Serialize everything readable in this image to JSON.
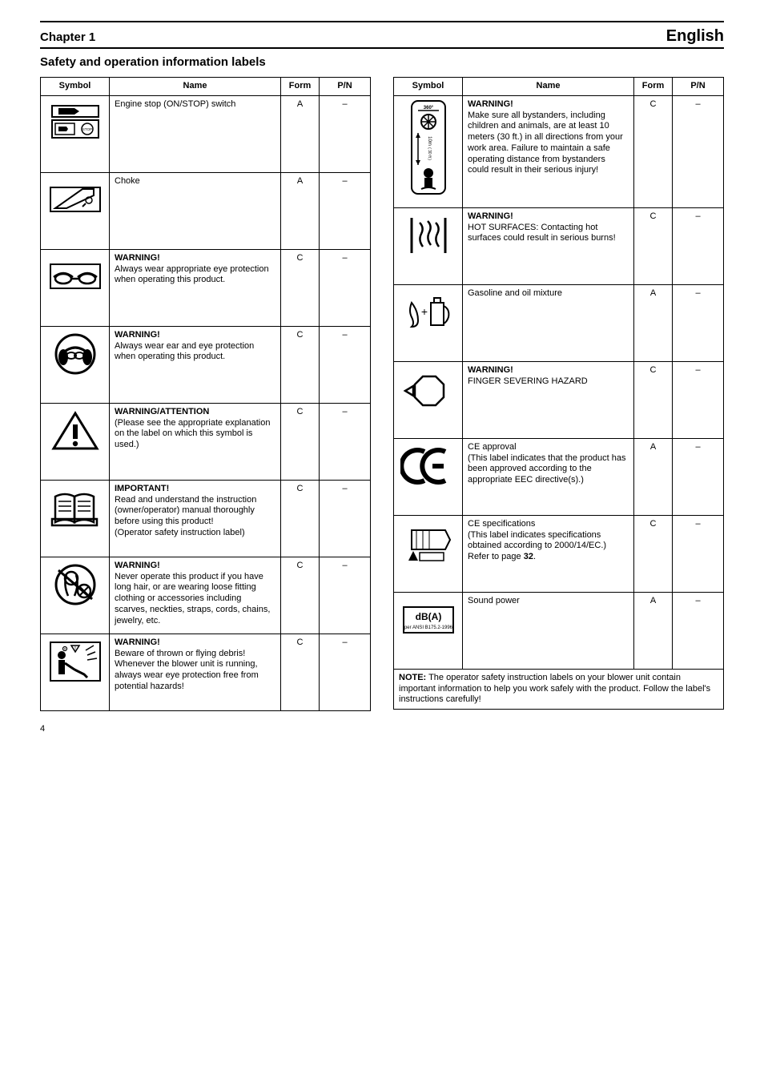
{
  "page": {
    "chapter": "Chapter 1",
    "chapter_right": "English",
    "section_title": "Safety and operation information labels",
    "page_number": "4"
  },
  "table": {
    "headers": {
      "symbol": "Symbol",
      "name": "Name",
      "form": "Form",
      "partno": "P/N"
    },
    "left": [
      {
        "icon": "stop-switch-icon",
        "name": "Engine stop (ON/STOP) switch",
        "form": "A",
        "partno": "–"
      },
      {
        "icon": "choke-icon",
        "name": "Choke",
        "form": "A",
        "partno": "–"
      },
      {
        "icon": "eyewear-icon",
        "name_html": "<b>WARNING!</b><br>Always wear appropriate eye protection when operating this product.",
        "form": "C",
        "partno": "–"
      },
      {
        "icon": "ear-eye-icon",
        "name_html": "<b>WARNING!</b><br>Always wear ear and eye protection when operating this product.",
        "form": "C",
        "partno": "–"
      },
      {
        "icon": "warning-triangle-icon",
        "name_html": "<b>WARNING/ATTENTION</b><br>(Please see the appropriate explanation on the label on which this symbol is used.)",
        "form": "C",
        "partno": "–"
      },
      {
        "icon": "read-manual-icon",
        "name_html": "<b>IMPORTANT!</b><br>Read and understand the instruction (owner/operator) manual thoroughly before using this product!<br>(Operator safety instruction label)",
        "form": "C",
        "partno": "–"
      },
      {
        "icon": "hair-hazard-icon",
        "name_html": "<b>WARNING!</b><br>Never operate this product if you have long hair, or are wearing loose fitting clothing or accessories including scarves, neckties, straps, cords, chains, jewelry, etc.",
        "form": "C",
        "partno": "–"
      },
      {
        "icon": "flying-debris-icon",
        "name_html": "<b>WARNING!</b><br>Beware of thrown or flying debris! Whenever the blower unit is running, always wear eye protection free from potential hazards!",
        "form": "C",
        "partno": "–"
      }
    ],
    "right": [
      {
        "icon": "bystander-distance-icon",
        "name_html": "<b>WARNING!</b><br>Make sure all bystanders, including children and animals, are at least 10 meters (30 ft.) in all directions from your work area. Failure to maintain a safe operating distance from bystanders could result in their serious injury!",
        "form": "C",
        "partno": "–"
      },
      {
        "icon": "hot-surface-icon",
        "name_html": "<b>WARNING!</b><br>HOT SURFACES: Contacting hot surfaces could result in serious burns!",
        "form": "C",
        "partno": "–"
      },
      {
        "icon": "fuel-oil-mix-icon",
        "name": "Gasoline and oil mixture",
        "form": "A",
        "partno": "–"
      },
      {
        "icon": "finger-severing-icon",
        "name_html": "<b>WARNING!</b><br>FINGER SEVERING HAZARD",
        "form": "C",
        "partno": "–"
      },
      {
        "icon": "ce-mark-icon",
        "name_html": "CE approval<br>(This label indicates that the product has been approved according to the appropriate EEC directive(s).)",
        "form": "A",
        "partno": "–"
      },
      {
        "icon": "specifications-icon",
        "name_html": "CE specifications<br>(This label indicates specifications obtained according to 2000/14/EC.)<br>Refer to page <b>32</b>.",
        "form": "C",
        "partno": "–"
      },
      {
        "icon": "sound-power-icon",
        "name": "Sound power",
        "form": "A",
        "partno": "–"
      }
    ],
    "note_html": "<b>NOTE:</b> The operator safety instruction labels on your blower unit contain important information to help you work safely with the product. Follow the label's instructions carefully!"
  },
  "colors": {
    "stroke": "#000000",
    "background": "#ffffff"
  }
}
